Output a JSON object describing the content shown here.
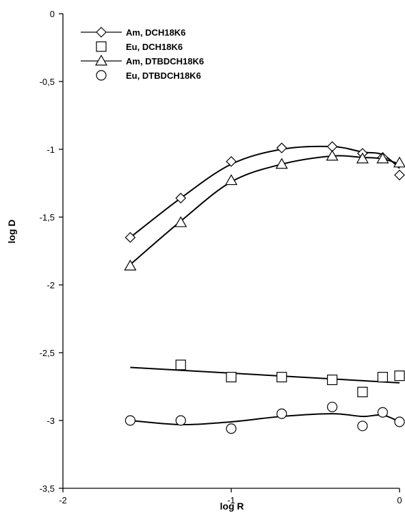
{
  "chart_data": {
    "type": "scatter",
    "title": "",
    "xlabel": "log R",
    "ylabel": "log D",
    "xlim": [
      -2,
      0
    ],
    "ylim": [
      -3.5,
      0
    ],
    "x_ticks": [
      "-2",
      "-1",
      "0"
    ],
    "y_ticks": [
      "0",
      "-0,5",
      "-1",
      "-1,5",
      "-2",
      "-2,5",
      "-3",
      "-3,5"
    ],
    "grid": false,
    "legend_position": "top-left",
    "series": [
      {
        "name": "Am, DCH18K6",
        "marker": "diamond",
        "line": true,
        "x": [
          -1.6,
          -1.3,
          -1.0,
          -0.7,
          -0.4,
          -0.22,
          -0.1,
          0.0
        ],
        "y": [
          -1.65,
          -1.36,
          -1.09,
          -0.99,
          -0.98,
          -1.03,
          -1.06,
          -1.19
        ],
        "fit_y": [
          -1.65,
          -1.36,
          -1.11,
          -1.0,
          -0.98,
          -1.02,
          -1.04,
          -1.14
        ]
      },
      {
        "name": "Eu, DCH18K6",
        "marker": "square",
        "line": true,
        "x": [
          -1.3,
          -1.0,
          -0.7,
          -0.4,
          -0.22,
          -0.1,
          0.0
        ],
        "y": [
          -2.59,
          -2.68,
          -2.68,
          -2.7,
          -2.79,
          -2.68,
          -2.67
        ],
        "fit_y": [
          -2.64,
          -2.67,
          -2.69,
          -2.7,
          -2.71,
          -2.72,
          -2.73
        ]
      },
      {
        "name": "Am, DTBDCH18K6",
        "marker": "triangle",
        "line": true,
        "x": [
          -1.6,
          -1.3,
          -1.0,
          -0.7,
          -0.4,
          -0.22,
          -0.1,
          0.0
        ],
        "y": [
          -1.86,
          -1.54,
          -1.23,
          -1.11,
          -1.05,
          -1.07,
          -1.07,
          -1.1
        ],
        "fit_y": [
          -1.85,
          -1.53,
          -1.24,
          -1.11,
          -1.05,
          -1.06,
          -1.07,
          -1.11
        ]
      },
      {
        "name": "Eu, DTBDCH18K6",
        "marker": "circle",
        "line": true,
        "x": [
          -1.6,
          -1.3,
          -1.0,
          -0.7,
          -0.4,
          -0.22,
          -0.1,
          0.0
        ],
        "y": [
          -3.0,
          -3.0,
          -3.06,
          -2.95,
          -2.9,
          -3.04,
          -2.94,
          -3.01
        ],
        "fit_y": [
          -3.0,
          -3.03,
          -3.01,
          -2.97,
          -2.95,
          -2.97,
          -2.96,
          -3.01
        ]
      }
    ]
  }
}
